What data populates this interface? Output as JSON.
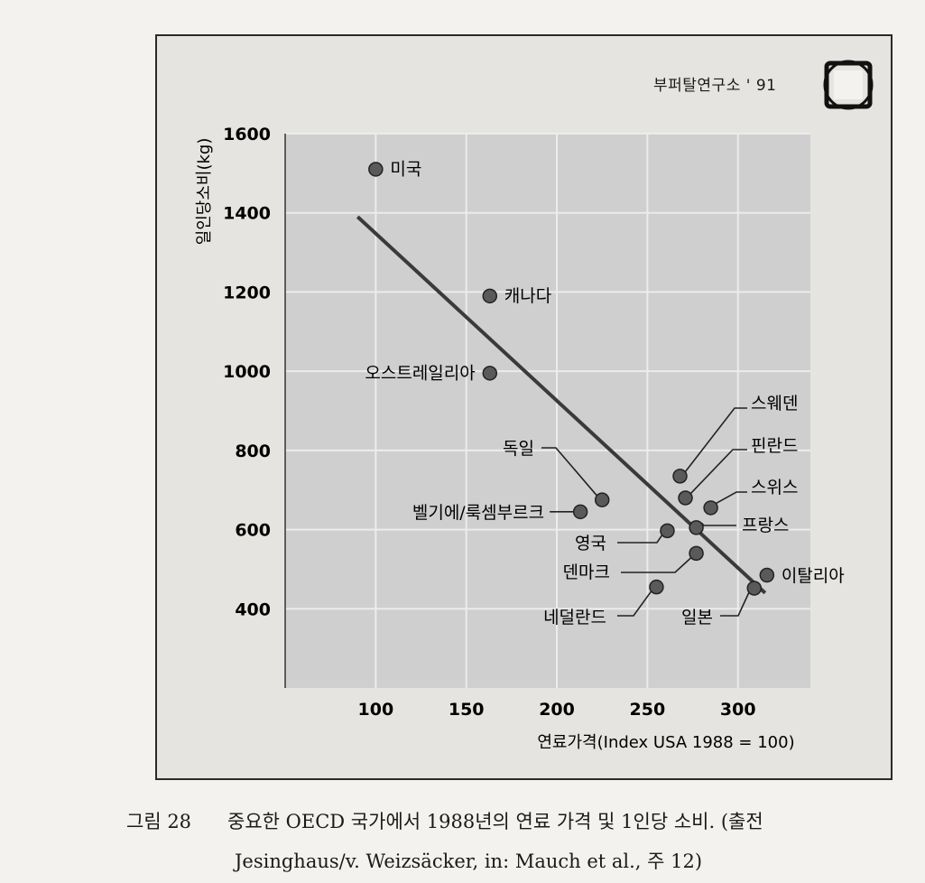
{
  "publisher": "부퍼탈연구소 ' 91",
  "caption": {
    "label": "그림 28",
    "text_line1": "중요한 OECD 국가에서 1988년의 연료 가격 및 1인당 소비. (출전",
    "text_line2": "Jesinghaus/v. Weizsäcker, in: Mauch et al., 주 12)"
  },
  "chart_data": {
    "type": "scatter",
    "title": "",
    "xlabel": "연료가격(Index USA 1988 = 100)",
    "ylabel": "일인당소비(kg)",
    "xlim": [
      50,
      340
    ],
    "ylim": [
      200,
      1600
    ],
    "xticks": [
      100,
      150,
      200,
      250,
      300
    ],
    "yticks": [
      400,
      600,
      800,
      1000,
      1200,
      1400,
      1600
    ],
    "grid": true,
    "points": [
      {
        "label": "미국",
        "x": 100,
        "y": 1510
      },
      {
        "label": "캐나다",
        "x": 163,
        "y": 1190
      },
      {
        "label": "오스트레일리아",
        "x": 163,
        "y": 995
      },
      {
        "label": "독일",
        "x": 225,
        "y": 675
      },
      {
        "label": "벨기에/룩셈부르크",
        "x": 213,
        "y": 645
      },
      {
        "label": "스웨덴",
        "x": 268,
        "y": 735
      },
      {
        "label": "핀란드",
        "x": 271,
        "y": 680
      },
      {
        "label": "스위스",
        "x": 285,
        "y": 655
      },
      {
        "label": "프랑스",
        "x": 277,
        "y": 605
      },
      {
        "label": "영국",
        "x": 261,
        "y": 597
      },
      {
        "label": "덴마크",
        "x": 277,
        "y": 540
      },
      {
        "label": "네덜란드",
        "x": 255,
        "y": 455
      },
      {
        "label": "일본",
        "x": 309,
        "y": 452
      },
      {
        "label": "이탈리아",
        "x": 316,
        "y": 485
      }
    ],
    "trendline": {
      "x": [
        90,
        315
      ],
      "y": [
        1390,
        440
      ]
    },
    "colors": {
      "plot_bg": "#cfcfcf",
      "grid": "#ececec",
      "marker": "#5a5a5a",
      "line": "#3a3a3a"
    }
  }
}
